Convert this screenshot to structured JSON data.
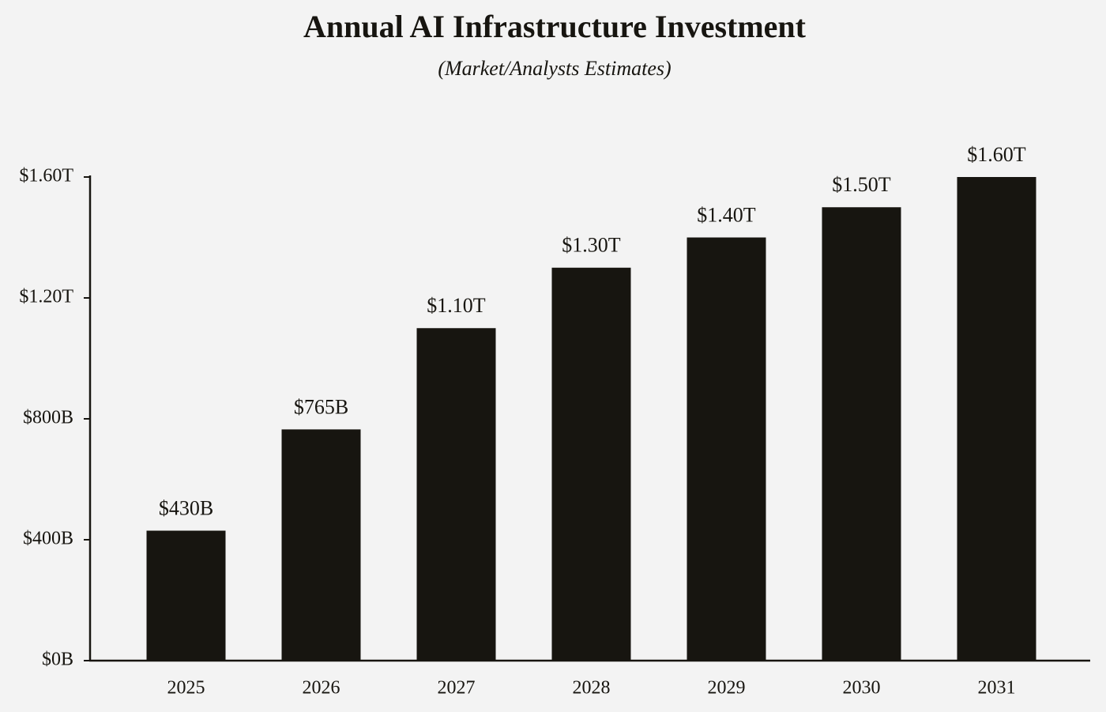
{
  "chart_data": {
    "type": "bar",
    "title": "Annual AI Infrastructure Investment",
    "subtitle": "(Market/Analysts Estimates)",
    "categories": [
      "2025",
      "2026",
      "2027",
      "2028",
      "2029",
      "2030",
      "2031"
    ],
    "values": [
      430,
      765,
      1100,
      1300,
      1400,
      1500,
      1600
    ],
    "value_labels": [
      "$430B",
      "$765B",
      "$1.10T",
      "$1.30T",
      "$1.40T",
      "$1.50T",
      "$1.60T"
    ],
    "color": "#171510",
    "ylim": [
      0,
      1600
    ],
    "yticks": [
      {
        "value": 0,
        "label": "$0B"
      },
      {
        "value": 400,
        "label": "$400B"
      },
      {
        "value": 800,
        "label": "$800B"
      },
      {
        "value": 1200,
        "label": "$1.20T"
      },
      {
        "value": 1600,
        "label": "$1.60T"
      }
    ],
    "grid": false
  }
}
